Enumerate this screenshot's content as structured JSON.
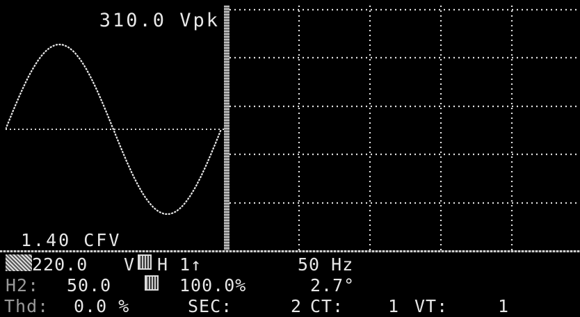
{
  "waveform": {
    "peak_label": "310.0 Vpk",
    "cf_label": "1.40 CFV"
  },
  "status": {
    "row1": {
      "voltage": "220.0",
      "unit": "V",
      "harmonic": "H 1↑",
      "frequency": "50 Hz"
    },
    "row2": {
      "label": "H2:",
      "value": "50.0",
      "percent": "100.0%",
      "angle": "2.7°"
    },
    "row3": {
      "thd_label": "Thd:",
      "thd_value": "0.0 %",
      "sec_label": "SEC:",
      "sec_value": "2",
      "ct_label": "CT:",
      "ct_value": "1",
      "vt_label": "VT:",
      "vt_value": "1"
    }
  }
}
